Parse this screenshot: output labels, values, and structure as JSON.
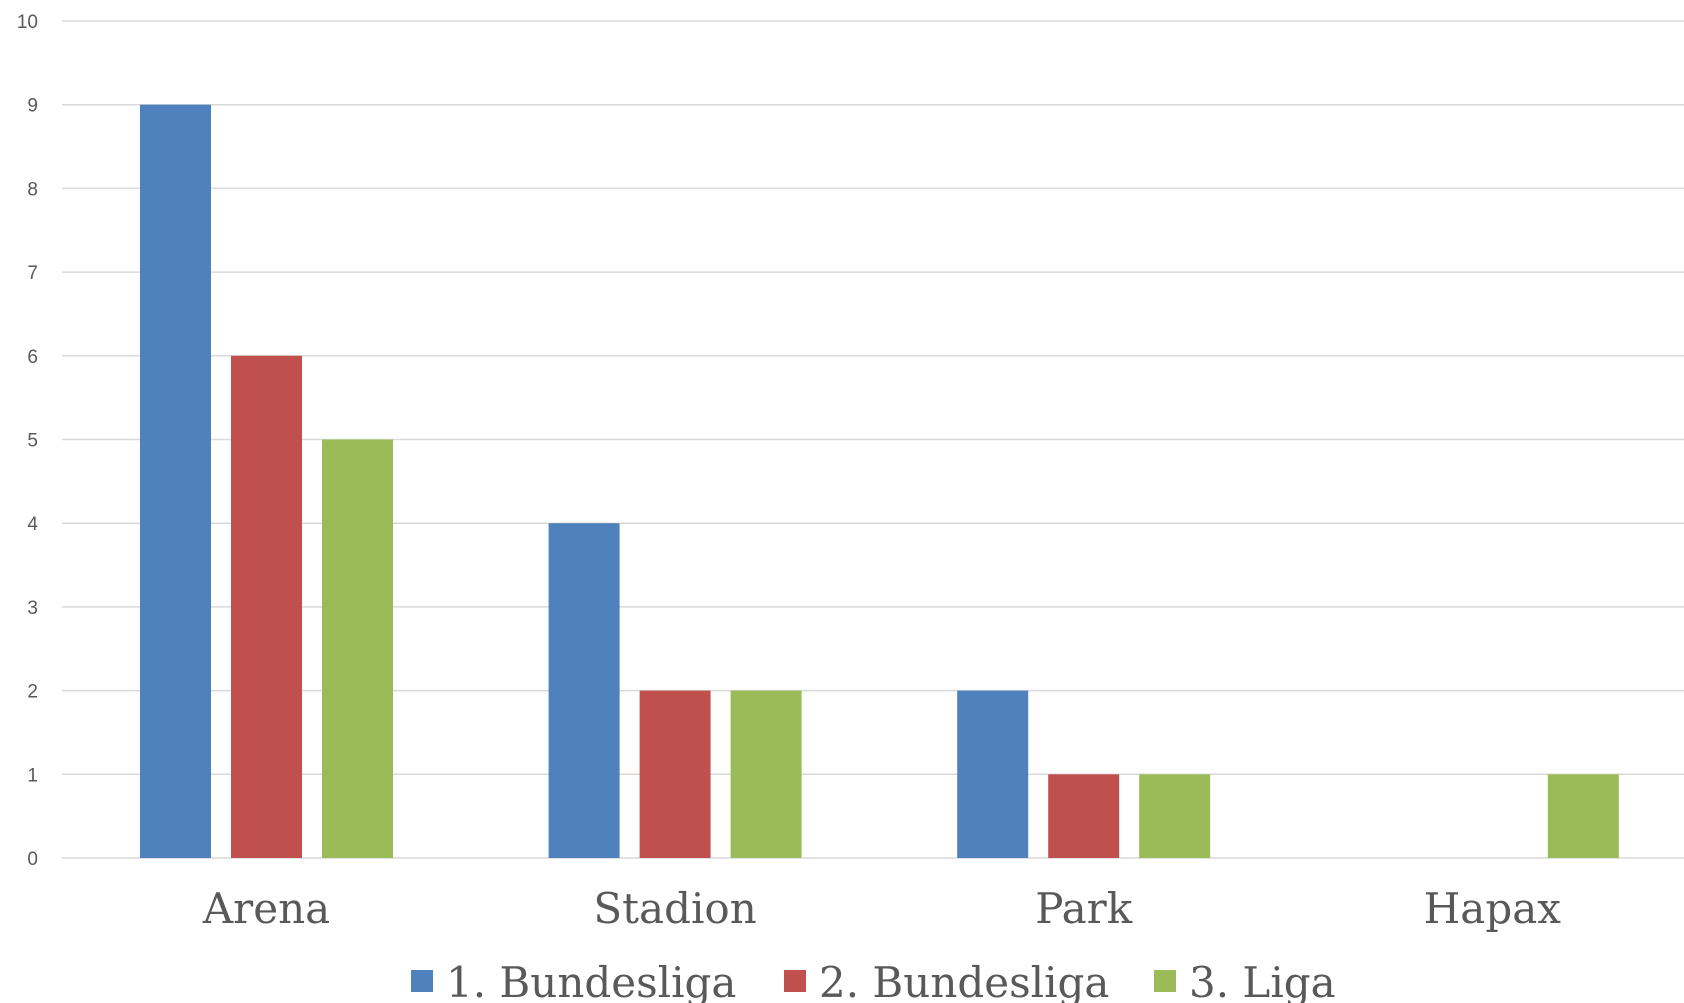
{
  "chart_data": {
    "type": "bar",
    "title": "",
    "xlabel": "",
    "ylabel": "",
    "categories": [
      "Arena",
      "Stadion",
      "Park",
      "Hapax"
    ],
    "series": [
      {
        "name": "1. Bundesliga",
        "color": "#4f81bd",
        "values": [
          9,
          4,
          2,
          0
        ]
      },
      {
        "name": "2. Bundesliga",
        "color": "#c0504d",
        "values": [
          6,
          2,
          1,
          0
        ]
      },
      {
        "name": "3. Liga",
        "color": "#9bbb59",
        "values": [
          5,
          2,
          1,
          1
        ]
      }
    ],
    "ylim": [
      0,
      10
    ],
    "yticks": [
      0,
      1,
      2,
      3,
      4,
      5,
      6,
      7,
      8,
      9,
      10
    ],
    "grid": true,
    "legend_position": "bottom"
  }
}
